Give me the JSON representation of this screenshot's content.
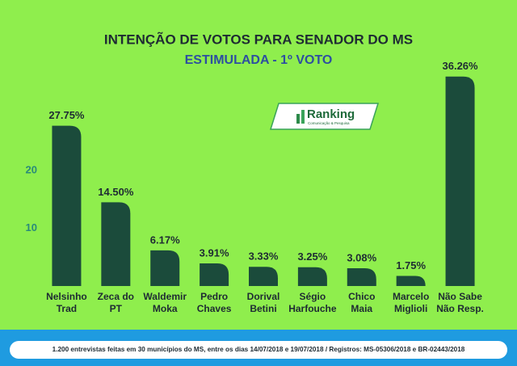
{
  "chart_data": {
    "type": "bar",
    "title": "INTENÇÃO DE VOTOS PARA SENADOR DO MS",
    "subtitle": "ESTIMULADA - 1º VOTO",
    "logo": "Ranking",
    "logo_tagline": "Comunicação & Pesquisa",
    "categories": [
      [
        "Nelsinho",
        "Trad"
      ],
      [
        "Zeca do",
        "PT"
      ],
      [
        "Waldemir",
        "Moka"
      ],
      [
        "Pedro",
        "Chaves"
      ],
      [
        "Dorival",
        "Betini"
      ],
      [
        "Ségio",
        "Harfouche"
      ],
      [
        "Chico",
        "Maia"
      ],
      [
        "Marcelo",
        "Miglioli"
      ],
      [
        "Não Sabe",
        "Não Resp."
      ]
    ],
    "values": [
      27.75,
      14.5,
      6.17,
      3.91,
      3.33,
      3.25,
      3.08,
      1.75,
      36.26
    ],
    "value_labels": [
      "27.75%",
      "14.50%",
      "6.17%",
      "3.91%",
      "3.33%",
      "3.25%",
      "3.08%",
      "1.75%",
      "36.26%"
    ],
    "color": "#1b4b3b",
    "ylim": [
      0,
      40
    ],
    "yticks": [
      10,
      20
    ],
    "grid": false,
    "footer": "1.200 entrevistas feitas em 30 municípios do MS, entre os dias 14/07/2018 e 19/07/2018 / Registros: MS-05306/2018 e BR-02443/2018"
  }
}
